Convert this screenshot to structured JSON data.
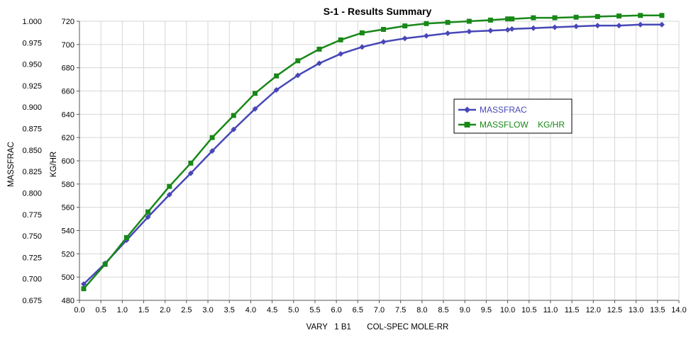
{
  "chart_data": {
    "type": "line",
    "title": "S-1 - Results Summary",
    "xlabel": "VARY   1 B1       COL-SPEC MOLE-RR",
    "ylabel_left": "MASSFRAC",
    "ylabel_right": "KG/HR",
    "xlim": [
      0.0,
      14.0
    ],
    "ylim_left": [
      0.675,
      1.0
    ],
    "ylim_right": [
      480,
      720
    ],
    "grid": true,
    "legend_position": "right-center",
    "x_ticks": [
      "0.0",
      "0.5",
      "1.0",
      "1.5",
      "2.0",
      "2.5",
      "3.0",
      "3.5",
      "4.0",
      "4.5",
      "5.0",
      "5.5",
      "6.0",
      "6.5",
      "7.0",
      "7.5",
      "8.0",
      "8.5",
      "9.0",
      "9.5",
      "10.0",
      "10.5",
      "11.0",
      "11.5",
      "12.0",
      "12.5",
      "13.0",
      "13.5",
      "14.0"
    ],
    "y_ticks_left": [
      "0.675",
      "0.700",
      "0.725",
      "0.750",
      "0.775",
      "0.800",
      "0.825",
      "0.850",
      "0.875",
      "0.900",
      "0.925",
      "0.950",
      "0.975",
      "1.000"
    ],
    "y_ticks_right": [
      "480",
      "500",
      "520",
      "540",
      "560",
      "580",
      "600",
      "620",
      "640",
      "660",
      "680",
      "700",
      "720"
    ],
    "x": [
      0.1,
      0.6,
      1.1,
      1.6,
      2.1,
      2.6,
      3.1,
      3.6,
      4.1,
      4.6,
      5.1,
      5.6,
      6.1,
      6.6,
      7.1,
      7.6,
      8.1,
      8.6,
      9.1,
      9.6,
      10.0,
      10.1,
      10.6,
      11.1,
      11.6,
      12.1,
      12.6,
      13.1,
      13.6
    ],
    "series": [
      {
        "name": "MASSFRAC",
        "axis": "left",
        "color": "#4747b8",
        "marker": "diamond",
        "values": [
          0.694,
          0.718,
          0.745,
          0.772,
          0.798,
          0.823,
          0.849,
          0.874,
          0.898,
          0.92,
          0.937,
          0.951,
          0.962,
          0.97,
          0.976,
          0.98,
          0.983,
          0.986,
          0.988,
          0.989,
          0.99,
          0.991,
          0.992,
          0.993,
          0.994,
          0.995,
          0.995,
          0.996,
          0.996
        ]
      },
      {
        "name": "MASSFLOW    KG/HR",
        "axis": "right",
        "color": "#188818",
        "marker": "square",
        "values": [
          490,
          511,
          534,
          556,
          578,
          598,
          620,
          639,
          658,
          673,
          686,
          696,
          704,
          710,
          713,
          716,
          718,
          719,
          720,
          721,
          722,
          722,
          723,
          723,
          723.5,
          724,
          724.5,
          725,
          725
        ]
      }
    ],
    "colors": {
      "plot_background": "#ffffff",
      "grid": "#d6d6d6"
    }
  }
}
